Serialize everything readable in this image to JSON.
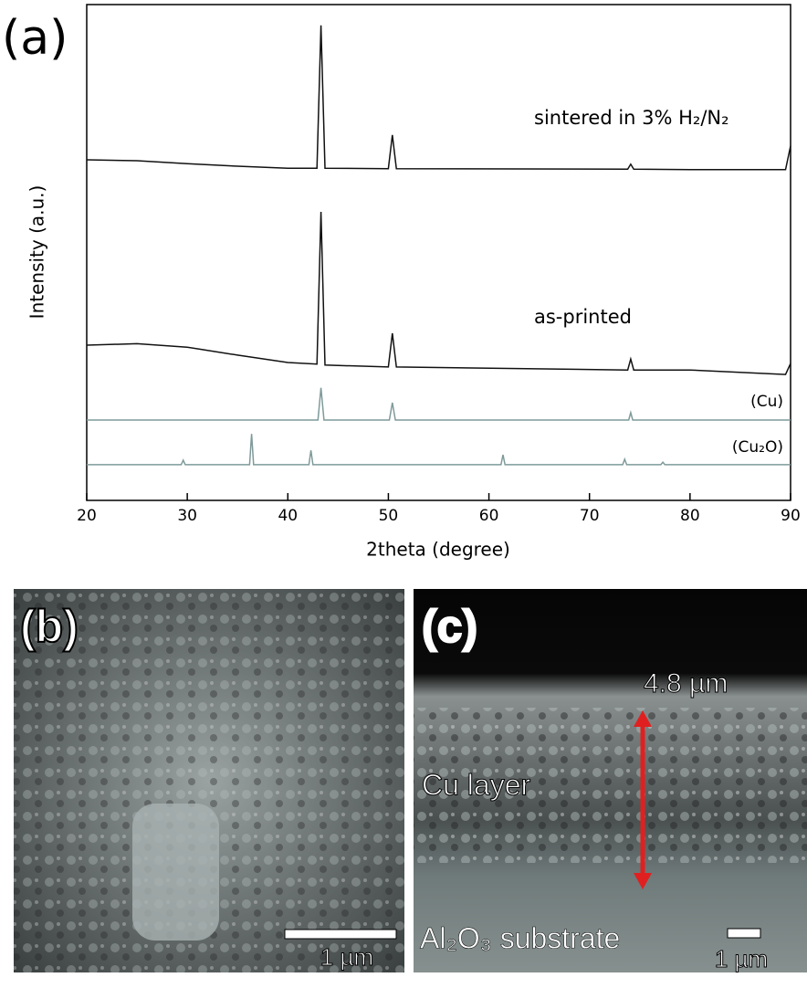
{
  "chart_data": {
    "type": "line",
    "panel_label": "(a)",
    "xlabel": "2theta (degree)",
    "ylabel": "Intensity (a.u.)",
    "xlim": [
      20,
      90
    ],
    "xticks": [
      20,
      30,
      40,
      50,
      60,
      70,
      80,
      90
    ],
    "ylim": [
      0,
      100
    ],
    "series": [
      {
        "name": "sintered in 3% H₂/N₂",
        "color": "#111111",
        "x": [
          20,
          25,
          30,
          35,
          40,
          42.9,
          43.3,
          43.7,
          50.0,
          50.4,
          50.8,
          73.8,
          74.1,
          74.4,
          80,
          89.5,
          90
        ],
        "values": [
          68.7,
          68.5,
          67.9,
          67.4,
          67.0,
          67.0,
          95.8,
          67.0,
          66.9,
          73.7,
          66.9,
          66.8,
          67.8,
          66.8,
          66.7,
          66.7,
          71.5
        ]
      },
      {
        "name": "as-printed",
        "color": "#111111",
        "x": [
          20,
          25,
          30,
          35,
          40,
          42.9,
          43.3,
          43.7,
          50.0,
          50.4,
          50.8,
          73.8,
          74.1,
          74.4,
          80,
          89.5,
          90
        ],
        "values": [
          31.3,
          31.6,
          30.9,
          29.3,
          27.8,
          27.5,
          58.2,
          27.3,
          26.9,
          33.7,
          26.9,
          26.3,
          28.5,
          26.3,
          26.3,
          25.4,
          27.6
        ]
      },
      {
        "name": "(Cu)",
        "color": "#7f9a9a",
        "x": [
          20,
          43.0,
          43.3,
          43.6,
          50.1,
          50.4,
          50.7,
          73.9,
          74.1,
          74.3,
          90
        ],
        "values": [
          16.2,
          16.2,
          22.7,
          16.2,
          16.2,
          19.7,
          16.2,
          16.2,
          17.7,
          16.2,
          16.2
        ]
      },
      {
        "name": "(Cu₂O)",
        "color": "#7f9a9a",
        "x": [
          20,
          29.4,
          29.6,
          29.8,
          36.2,
          36.4,
          36.6,
          42.1,
          42.3,
          42.5,
          61.2,
          61.4,
          61.6,
          73.3,
          73.5,
          73.7,
          77.1,
          77.3,
          77.5,
          90
        ],
        "values": [
          7.2,
          7.2,
          8.1,
          7.2,
          7.2,
          13.4,
          7.2,
          7.2,
          10.1,
          7.2,
          7.2,
          9.2,
          7.2,
          7.2,
          8.3,
          7.2,
          7.2,
          7.7,
          7.2,
          7.2
        ]
      }
    ]
  },
  "panel_b": {
    "label": "(b)",
    "scale_bar": "1 µm"
  },
  "panel_c": {
    "label": "(c)",
    "thickness": "4.8 µm",
    "layer": "Cu layer",
    "substrate": "Al₂O₃ substrate",
    "scale_bar": "1 µm"
  }
}
